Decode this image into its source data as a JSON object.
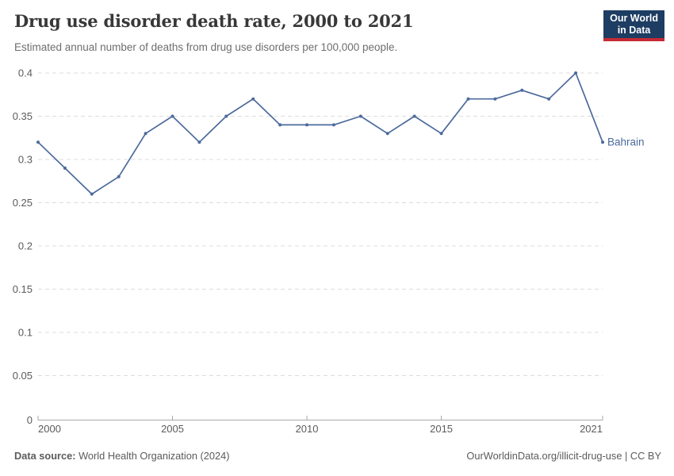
{
  "header": {
    "title": "Drug use disorder death rate, 2000 to 2021",
    "subtitle": "Estimated annual number of deaths from drug use disorders per 100,000 people.",
    "logo": {
      "line1": "Our World",
      "line2": "in Data"
    }
  },
  "chart_data": {
    "type": "line",
    "title": "Drug use disorder death rate, 2000 to 2021",
    "x": [
      2000,
      2001,
      2002,
      2003,
      2004,
      2005,
      2006,
      2007,
      2008,
      2009,
      2010,
      2011,
      2012,
      2013,
      2014,
      2015,
      2016,
      2017,
      2018,
      2019,
      2020,
      2021
    ],
    "series": [
      {
        "name": "Bahrain",
        "color": "#4C6A9C",
        "values": [
          0.32,
          0.29,
          0.26,
          0.28,
          0.33,
          0.35,
          0.32,
          0.35,
          0.37,
          0.34,
          0.34,
          0.34,
          0.35,
          0.33,
          0.35,
          0.33,
          0.37,
          0.37,
          0.38,
          0.37,
          0.4,
          0.32
        ]
      }
    ],
    "xlabel": "",
    "ylabel": "",
    "ylim": [
      0,
      0.4
    ],
    "yticks": [
      {
        "v": 0,
        "label": "0"
      },
      {
        "v": 0.05,
        "label": "0.05"
      },
      {
        "v": 0.1,
        "label": "0.1"
      },
      {
        "v": 0.15,
        "label": "0.15"
      },
      {
        "v": 0.2,
        "label": "0.2"
      },
      {
        "v": 0.25,
        "label": "0.25"
      },
      {
        "v": 0.3,
        "label": "0.3"
      },
      {
        "v": 0.35,
        "label": "0.35"
      },
      {
        "v": 0.4,
        "label": "0.4"
      }
    ],
    "xticks": [
      {
        "v": 2000,
        "label": "2000"
      },
      {
        "v": 2005,
        "label": "2005"
      },
      {
        "v": 2010,
        "label": "2010"
      },
      {
        "v": 2015,
        "label": "2015"
      },
      {
        "v": 2021,
        "label": "2021"
      }
    ],
    "grid": "horizontal-dashed",
    "legend_position": "end-of-line-label"
  },
  "footer": {
    "source_label": "Data source:",
    "source_value": " World Health Organization (2024)",
    "credit": "OurWorldinData.org/illicit-drug-use | CC BY"
  },
  "colors": {
    "line": "#4C6A9C",
    "grid": "#dcdcdc",
    "axis": "#a7a7a7",
    "tick_label": "#5b5b5b",
    "title": "#383838",
    "subtitle": "#6e6e6e",
    "logo_bg": "#1d3d63",
    "logo_red": "#c52a35"
  }
}
